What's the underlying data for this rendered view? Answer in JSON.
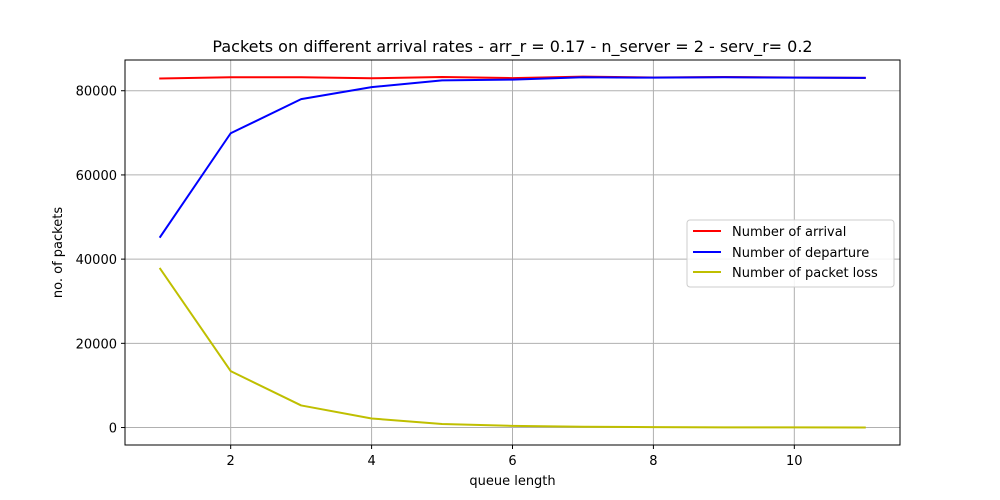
{
  "chart_data": {
    "type": "line",
    "title": "Packets on different arrival rates - arr_r = 0.17 - n_server = 2 - serv_r= 0.2",
    "xlabel": "queue length",
    "ylabel": "no. of packets",
    "x": [
      1,
      2,
      3,
      4,
      5,
      6,
      7,
      8,
      9,
      10,
      11
    ],
    "xlim": [
      0.5,
      11.5
    ],
    "ylim": [
      -4150,
      87300
    ],
    "xticks": [
      2,
      4,
      6,
      8,
      10
    ],
    "yticks": [
      0,
      20000,
      40000,
      60000,
      80000
    ],
    "grid": true,
    "legend_position": "center-right",
    "series": [
      {
        "name": "Number of arrival",
        "color": "#ff0000",
        "values": [
          82900,
          83200,
          83200,
          82950,
          83250,
          83000,
          83350,
          83150,
          83250,
          83150,
          83050
        ]
      },
      {
        "name": "Number of departure",
        "color": "#0000ff",
        "values": [
          45300,
          69900,
          78000,
          80850,
          82450,
          82650,
          83200,
          83100,
          83200,
          83100,
          83050
        ]
      },
      {
        "name": "Number of packet loss",
        "color": "#bfbf00",
        "values": [
          37700,
          13400,
          5250,
          2150,
          850,
          400,
          200,
          100,
          50,
          30,
          20
        ]
      }
    ]
  }
}
